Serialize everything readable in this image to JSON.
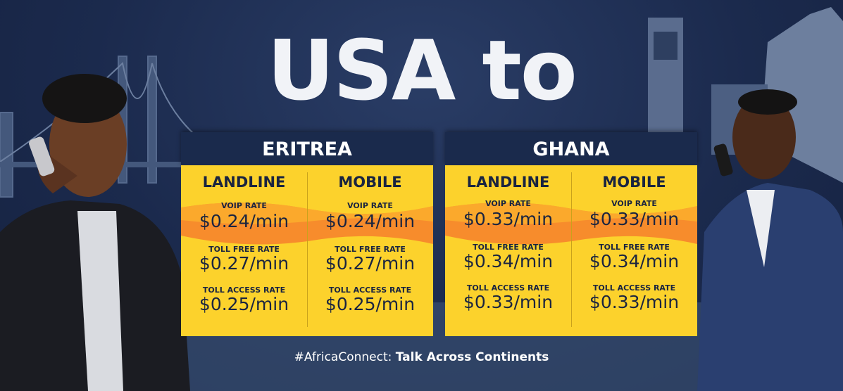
{
  "title": "USA to",
  "countries": [
    {
      "name": "ERITREA",
      "columns": [
        {
          "label": "LANDLINE",
          "rates": [
            {
              "label": "VOIP RATE",
              "value": "$0.24/min"
            },
            {
              "label": "TOLL FREE RATE",
              "value": "$0.27/min"
            },
            {
              "label": "TOLL ACCESS RATE",
              "value": "$0.25/min"
            }
          ]
        },
        {
          "label": "MOBILE",
          "rates": [
            {
              "label": "VOIP RATE",
              "value": "$0.24/min"
            },
            {
              "label": "TOLL FREE RATE",
              "value": "$0.27/min"
            },
            {
              "label": "TOLL ACCESS RATE",
              "value": "$0.25/min"
            }
          ]
        }
      ]
    },
    {
      "name": "GHANA",
      "columns": [
        {
          "label": "LANDLINE",
          "rates": [
            {
              "label": "VOIP RATE",
              "value": "$0.33/min"
            },
            {
              "label": "TOLL FREE RATE",
              "value": "$0.34/min"
            },
            {
              "label": "TOLL ACCESS RATE",
              "value": "$0.33/min"
            }
          ]
        },
        {
          "label": "MOBILE",
          "rates": [
            {
              "label": "VOIP RATE",
              "value": "$0.33/min"
            },
            {
              "label": "TOLL FREE RATE",
              "value": "$0.34/min"
            },
            {
              "label": "TOLL ACCESS RATE",
              "value": "$0.33/min"
            }
          ]
        }
      ]
    }
  ],
  "footer": {
    "hashtag": "#AfricaConnect:",
    "tagline": "Talk Across Continents"
  }
}
